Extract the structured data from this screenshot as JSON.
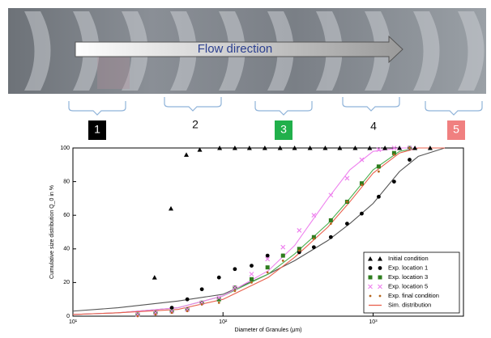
{
  "figure_labels": {
    "flow": "Flow direction",
    "locations": [
      "1",
      "2",
      "3",
      "4",
      "5"
    ]
  },
  "chart_data": {
    "type": "scatter",
    "x_label": "Diameter of Granules (μm)",
    "y_label": "Cumulative size distribution Q_0 in %",
    "xlog": true,
    "xlim": [
      10,
      4000
    ],
    "xticks": [
      {
        "value": 10,
        "label": "10¹"
      },
      {
        "value": 100,
        "label": "10²"
      },
      {
        "value": 1000,
        "label": "10³"
      }
    ],
    "ylim": [
      0,
      100
    ],
    "yticks": [
      0,
      20,
      40,
      60,
      80,
      100
    ],
    "legend": "lower right",
    "sim_x": [
      10,
      20,
      50,
      100,
      200,
      300,
      500,
      700,
      1000,
      1500,
      2000,
      3000
    ],
    "series": [
      {
        "name": "Initial condition",
        "color": "#000000",
        "marker": "triangle",
        "x": [
          35,
          45,
          57,
          70,
          95,
          120,
          150,
          190,
          240,
          300,
          380,
          480,
          600,
          760,
          950,
          1200,
          1500,
          1900,
          2400
        ],
        "values": [
          23,
          64,
          96,
          99,
          100,
          100,
          100,
          100,
          100,
          100,
          100,
          100,
          100,
          100,
          100,
          100,
          100,
          100,
          100
        ]
      },
      {
        "name": "Exp. location 1",
        "color": "#000000",
        "marker": "circle",
        "sim_color": "#555555",
        "x": [
          27,
          35.5,
          45.6,
          57.8,
          72.3,
          94,
          120,
          155,
          198,
          251,
          322,
          403,
          523,
          671,
          840,
          1090,
          1380,
          1750
        ],
        "values": [
          1,
          2,
          5,
          10,
          16,
          23,
          28,
          30,
          36,
          36,
          38,
          41,
          47,
          55,
          61,
          71,
          80,
          93
        ],
        "sim": [
          3,
          5,
          9,
          13,
          25,
          33,
          45,
          55,
          67,
          86,
          95,
          100
        ]
      },
      {
        "name": "Exp. location 3",
        "color": "#2e7d1e",
        "marker": "square",
        "sim_color": "#4caf50",
        "x": [
          27,
          35.5,
          45.6,
          57.8,
          72.3,
          94,
          120,
          155,
          198,
          251,
          322,
          403,
          523,
          671,
          840,
          1090,
          1380,
          1750
        ],
        "values": [
          1,
          2,
          3,
          4,
          8,
          10,
          17,
          22,
          29,
          36,
          40,
          47,
          57,
          68,
          79,
          89,
          97,
          100
        ],
        "sim": [
          1,
          2,
          5,
          12,
          25,
          37,
          55,
          70,
          87,
          98,
          100,
          100
        ]
      },
      {
        "name": "Exp. location 5",
        "color": "#ee82ee",
        "marker": "x",
        "sim_color": "#ee82ee",
        "x": [
          27,
          35.5,
          45.6,
          57.8,
          72.3,
          94,
          120,
          155,
          198,
          251,
          322,
          403,
          523,
          671,
          840,
          1090,
          1380,
          1750
        ],
        "values": [
          1,
          2,
          3,
          4,
          8,
          11,
          17,
          25,
          34,
          41,
          51,
          60,
          72,
          82,
          93,
          99,
          100,
          100
        ],
        "sim": [
          1,
          2,
          5,
          12,
          27,
          42,
          70,
          87,
          98,
          100,
          100,
          100
        ]
      },
      {
        "name": "Exp. final condition",
        "color": "#b5651d",
        "marker": "dot",
        "x": [
          27,
          35.5,
          45.6,
          57.8,
          72.3,
          94,
          120,
          155,
          198,
          251,
          322,
          403,
          523,
          671,
          840,
          1090,
          1380,
          1750
        ],
        "values": [
          0,
          1,
          2,
          3,
          7,
          8,
          15,
          20,
          26,
          33,
          39,
          46,
          55,
          68,
          78,
          86,
          96,
          100
        ]
      },
      {
        "name": "Sim. distribution",
        "color": "#e8604c",
        "marker": "line",
        "sim": [
          1,
          2,
          4,
          10,
          23,
          35,
          53,
          68,
          85,
          97,
          100,
          100
        ]
      }
    ]
  }
}
